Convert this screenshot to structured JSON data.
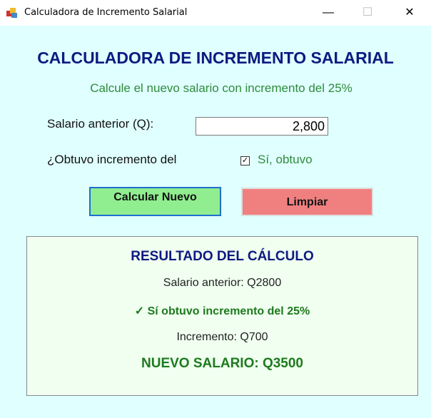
{
  "window": {
    "title": "Calculadora de Incremento Salarial",
    "minimize": "—",
    "maximize": "☐",
    "close": "✕"
  },
  "colors": {
    "background": "#e0ffff",
    "heading": "#0d1a80",
    "accent_green": "#2e8b3a",
    "calc_button": "#90ee90",
    "clear_button": "#f08080",
    "panel": "#f0fff0"
  },
  "header": {
    "title": "CALCULADORA DE INCREMENTO SALARIAL",
    "subtitle": "Calcule el nuevo salario con incremento del 25%"
  },
  "form": {
    "salary_label": "Salario anterior (Q):",
    "salary_value": "2,800",
    "increment_label": "¿Obtuvo incremento del",
    "checkbox_label": "Sí, obtuvo",
    "checkbox_checked": true,
    "check_mark": "✓"
  },
  "buttons": {
    "calculate": "Calcular Nuevo",
    "clear": "Limpiar"
  },
  "result": {
    "title": "RESULTADO DEL CÁLCULO",
    "previous": "Salario anterior: Q2800",
    "status": "✓ Sí obtuvo incremento del 25%",
    "increment": "Incremento: Q700",
    "new_salary": "NUEVO SALARIO: Q3500"
  }
}
